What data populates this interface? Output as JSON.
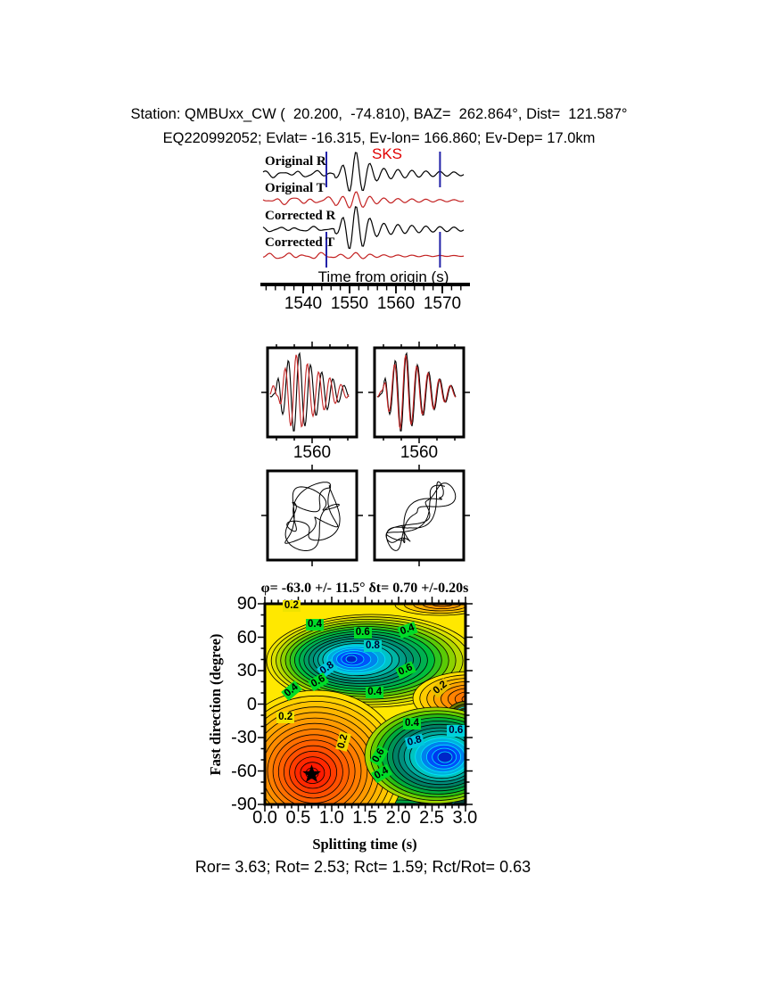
{
  "chart_data": {
    "type": "seismic_sks_splitting_figure",
    "header": {
      "line1": "Station: QMBUxx_CW (  20.200,  -74.810), BAZ=  262.864°, Dist=  121.587°",
      "line2": "EQ220992052; Evlat= -16.315, Ev-lon= 166.860; Ev-Dep= 17.0km"
    },
    "station": {
      "name": "QMBUxx_CW",
      "lat": 20.2,
      "lon": -74.81,
      "baz_deg": 262.864,
      "dist_deg": 121.587
    },
    "event": {
      "id": "EQ220992052",
      "lat": -16.315,
      "lon": 166.86,
      "depth_km": 17.0
    },
    "waveform_panel": {
      "phase_label": "SKS",
      "phase_color": "#E00000",
      "window_times": [
        1545.0,
        1569.5
      ],
      "window_color": "#2121A8",
      "axis": {
        "label": "Time from origin (s)",
        "ticks": [
          "1540",
          "1550",
          "1560",
          "1570"
        ],
        "tick_values": [
          1540,
          1550,
          1560,
          1570
        ]
      },
      "traces": [
        {
          "label": "Original R",
          "color": "#000000",
          "amp": 15,
          "pre": 0.3,
          "packet": 1.15,
          "osc": 0.75,
          "s": [
            0.3,
            1.7,
            4.1
          ]
        },
        {
          "label": "Original T",
          "color": "#C32222",
          "amp": 9,
          "pre": 0.55,
          "packet": 0.7,
          "osc": 0.6,
          "s": [
            2.1,
            0.4,
            3.3
          ]
        },
        {
          "label": "Corrected R",
          "color": "#000000",
          "amp": 15,
          "pre": 0.22,
          "packet": 1.2,
          "osc": 0.8,
          "s": [
            1.2,
            2.6,
            0.7
          ]
        },
        {
          "label": "Corrected T",
          "color": "#C32222",
          "amp": 4.5,
          "pre": 0.9,
          "packet": 0.3,
          "osc": 0.55,
          "s": [
            4.4,
            1.1,
            2.8
          ]
        }
      ]
    },
    "component_boxes": [
      {
        "tick_label": "1560",
        "alignment": "original fast/slow pair, phase-shifted"
      },
      {
        "tick_label": "1560",
        "alignment": "corrected fast/slow pair, aligned"
      }
    ],
    "particle_motion": [
      {
        "description": "original particle motion, elliptical"
      },
      {
        "description": "corrected particle motion, linearized diagonal"
      }
    ],
    "contour_panel": {
      "title": "φ= -63.0 +/- 11.5° δt= 0.70 +/-0.20s",
      "xlabel": "Splitting time (s)",
      "ylabel": "Fast direction (degree)",
      "xticks": [
        "0.0",
        "0.5",
        "1.0",
        "1.5",
        "2.0",
        "2.5",
        "3.0"
      ],
      "yticks": [
        "90",
        "60",
        "30",
        "0",
        "-30",
        "-60",
        "-90"
      ],
      "xlim": [
        0.0,
        3.0
      ],
      "ylim": [
        -90,
        90
      ],
      "contour_levels": [
        0.2,
        0.4,
        0.6,
        0.8
      ],
      "best_fit": {
        "phi_deg": -63.0,
        "phi_err_deg": 11.5,
        "dt_s": 0.7,
        "dt_err_s": 0.2
      },
      "star": {
        "t": 0.7,
        "phi": -63
      },
      "minima": [
        {
          "t": 1.3,
          "phi": 40
        },
        {
          "t": 2.67,
          "phi": -48
        }
      ],
      "contour_labels": [
        {
          "text": "0.2",
          "t": 0.4,
          "phi": 88,
          "bg": "#EFE300",
          "rot": 0
        },
        {
          "text": "0.4",
          "t": 0.75,
          "phi": 71,
          "bg": "#00DC28",
          "rot": 0
        },
        {
          "text": "0.6",
          "t": 1.47,
          "phi": 64,
          "bg": "#00DC28",
          "rot": 0
        },
        {
          "text": "0.4",
          "t": 2.14,
          "phi": 66,
          "bg": "#00DC28",
          "rot": -20
        },
        {
          "text": "0.8",
          "t": 1.62,
          "phi": 52,
          "bg": "#00D2C8",
          "rot": 0
        },
        {
          "text": "0.8",
          "t": 0.94,
          "phi": 32,
          "bg": "#00C8DC",
          "rot": -35
        },
        {
          "text": "0.6",
          "t": 2.12,
          "phi": 30,
          "bg": "#00DC28",
          "rot": -25
        },
        {
          "text": "0.6",
          "t": 0.8,
          "phi": 20,
          "bg": "#00DC28",
          "rot": -30
        },
        {
          "text": "0.4",
          "t": 0.4,
          "phi": 12,
          "bg": "#00DC28",
          "rot": -40
        },
        {
          "text": "0.4",
          "t": 1.65,
          "phi": 10,
          "bg": "#00DC28",
          "rot": 0
        },
        {
          "text": "0.2",
          "t": 2.64,
          "phi": 14,
          "bg": "#E8C000",
          "rot": -40
        },
        {
          "text": "0.2",
          "t": 0.31,
          "phi": -12,
          "bg": "#EFE300",
          "rot": 0
        },
        {
          "text": "0.2",
          "t": 1.18,
          "phi": -34,
          "bg": "#EFD800",
          "rot": -75
        },
        {
          "text": "0.4",
          "t": 2.21,
          "phi": -18,
          "bg": "#00DC28",
          "rot": 0
        },
        {
          "text": "0.6",
          "t": 2.87,
          "phi": -24,
          "bg": "#00D2DC",
          "rot": 0
        },
        {
          "text": "0.8",
          "t": 2.25,
          "phi": -34,
          "bg": "#00C8DC",
          "rot": -15
        },
        {
          "text": "0.6",
          "t": 1.71,
          "phi": -47,
          "bg": "#00DC28",
          "rot": -60
        },
        {
          "text": "0.4",
          "t": 1.75,
          "phi": -63,
          "bg": "#00DC28",
          "rot": -30
        }
      ]
    },
    "footer": "Ror= 3.63; Rot= 2.53; Rct= 1.59; Rct/Rot= 0.63"
  }
}
